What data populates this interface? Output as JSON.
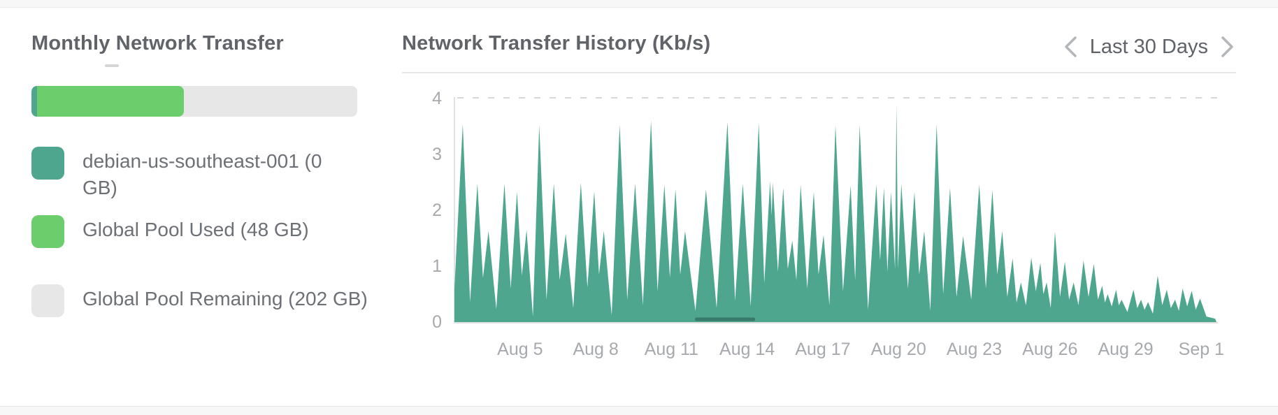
{
  "monthly_transfer": {
    "title": "Monthly Network Transfer",
    "bar": {
      "track_color": "#e7e7e7",
      "segments": [
        {
          "name": "debian-us-southeast-001",
          "color": "#4EA68F",
          "percent": 1.7
        },
        {
          "name": "Global Pool Used",
          "color": "#6BCD6B",
          "percent": 45.1
        }
      ]
    },
    "legend": [
      {
        "label": "debian-us-southeast-001 (0 GB)",
        "color": "#4EA68F"
      },
      {
        "label": "Global Pool Used (48 GB)",
        "color": "#6BCD6B"
      },
      {
        "label": "Global Pool Remaining (202 GB)",
        "color": "#e7e7e7"
      }
    ]
  },
  "history": {
    "title": "Network Transfer History (Kb/s)",
    "range_label": "Last 30 Days"
  },
  "chart_data": {
    "type": "area",
    "title": "Network Transfer History (Kb/s)",
    "xlabel": "",
    "ylabel": "Kb/s",
    "xlim": [
      2.4,
      32.6
    ],
    "ylim": [
      0,
      4
    ],
    "grid": "dashed reference line at y=4 only; light left and bottom axis lines",
    "legend_position": "none",
    "xticks": [
      {
        "v": 5,
        "label": "Aug 5"
      },
      {
        "v": 8,
        "label": "Aug 8"
      },
      {
        "v": 11,
        "label": "Aug 11"
      },
      {
        "v": 14,
        "label": "Aug 14"
      },
      {
        "v": 17,
        "label": "Aug 17"
      },
      {
        "v": 20,
        "label": "Aug 20"
      },
      {
        "v": 23,
        "label": "Aug 23"
      },
      {
        "v": 26,
        "label": "Aug 26"
      },
      {
        "v": 29,
        "label": "Aug 29"
      },
      {
        "v": 32,
        "label": "Sep 1"
      }
    ],
    "yticks": [
      {
        "v": 0,
        "label": "0"
      },
      {
        "v": 1,
        "label": "1"
      },
      {
        "v": 2,
        "label": "2"
      },
      {
        "v": 3,
        "label": "3"
      },
      {
        "v": 4,
        "label": "4"
      }
    ],
    "series": [
      {
        "id": "global-pool-traffic",
        "style": "filled-area",
        "color": "#4EA68F",
        "points": [
          [
            2.4,
            0.6
          ],
          [
            2.73,
            3.54
          ],
          [
            3.02,
            0.36
          ],
          [
            3.31,
            2.48
          ],
          [
            3.53,
            0.79
          ],
          [
            3.75,
            1.63
          ],
          [
            4.06,
            0.23
          ],
          [
            4.38,
            2.48
          ],
          [
            4.63,
            0.6
          ],
          [
            4.88,
            2.33
          ],
          [
            5.07,
            0.83
          ],
          [
            5.26,
            1.65
          ],
          [
            5.51,
            0.1
          ],
          [
            5.76,
            3.52
          ],
          [
            6.05,
            0.4
          ],
          [
            6.34,
            2.48
          ],
          [
            6.57,
            0.75
          ],
          [
            6.81,
            1.58
          ],
          [
            7.11,
            0.25
          ],
          [
            7.41,
            2.49
          ],
          [
            7.67,
            0.62
          ],
          [
            7.94,
            2.34
          ],
          [
            8.13,
            0.85
          ],
          [
            8.32,
            1.63
          ],
          [
            8.63,
            0.12
          ],
          [
            8.95,
            3.53
          ],
          [
            9.25,
            0.4
          ],
          [
            9.56,
            2.48
          ],
          [
            9.87,
            0.3
          ],
          [
            10.19,
            3.61
          ],
          [
            10.45,
            0.55
          ],
          [
            10.72,
            2.46
          ],
          [
            10.94,
            0.8
          ],
          [
            11.16,
            2.38
          ],
          [
            11.35,
            0.85
          ],
          [
            11.54,
            1.63
          ],
          [
            11.95,
            0.2
          ],
          [
            12.37,
            2.37
          ],
          [
            12.79,
            0.25
          ],
          [
            13.22,
            3.58
          ],
          [
            13.52,
            0.38
          ],
          [
            13.83,
            2.48
          ],
          [
            14.14,
            0.28
          ],
          [
            14.46,
            3.56
          ],
          [
            14.68,
            0.7
          ],
          [
            14.91,
            2.52
          ],
          [
            14.97,
            1.9
          ],
          [
            15.02,
            2.5
          ],
          [
            15.22,
            0.9
          ],
          [
            15.43,
            2.4
          ],
          [
            15.61,
            0.95
          ],
          [
            15.79,
            1.46
          ],
          [
            15.95,
            0.75
          ],
          [
            16.12,
            2.46
          ],
          [
            16.38,
            0.6
          ],
          [
            16.64,
            2.33
          ],
          [
            16.83,
            0.85
          ],
          [
            17.03,
            1.56
          ],
          [
            17.26,
            0.3
          ],
          [
            17.5,
            3.52
          ],
          [
            17.8,
            0.55
          ],
          [
            18.1,
            2.44
          ],
          [
            18.28,
            0.75
          ],
          [
            18.46,
            3.52
          ],
          [
            18.79,
            0.22
          ],
          [
            19.12,
            2.46
          ],
          [
            19.27,
            1.1
          ],
          [
            19.42,
            2.4
          ],
          [
            19.56,
            0.9
          ],
          [
            19.7,
            2.33
          ],
          [
            19.86,
            0.95
          ],
          [
            19.92,
            3.9
          ],
          [
            19.98,
            0.95
          ],
          [
            20.11,
            2.48
          ],
          [
            20.37,
            0.6
          ],
          [
            20.63,
            2.33
          ],
          [
            20.82,
            0.85
          ],
          [
            21.02,
            1.63
          ],
          [
            21.26,
            0.2
          ],
          [
            21.51,
            3.54
          ],
          [
            21.77,
            0.5
          ],
          [
            22.04,
            2.4
          ],
          [
            22.3,
            0.45
          ],
          [
            22.56,
            1.54
          ],
          [
            22.88,
            0.4
          ],
          [
            23.2,
            2.46
          ],
          [
            23.46,
            0.6
          ],
          [
            23.72,
            2.36
          ],
          [
            23.91,
            0.85
          ],
          [
            24.11,
            1.63
          ],
          [
            24.31,
            0.45
          ],
          [
            24.52,
            1.14
          ],
          [
            24.68,
            0.35
          ],
          [
            24.85,
            0.71
          ],
          [
            25.05,
            0.3
          ],
          [
            25.26,
            1.15
          ],
          [
            25.44,
            0.55
          ],
          [
            25.62,
            1.06
          ],
          [
            25.74,
            0.5
          ],
          [
            25.87,
            0.71
          ],
          [
            26.03,
            0.25
          ],
          [
            26.2,
            1.62
          ],
          [
            26.4,
            0.45
          ],
          [
            26.59,
            1.08
          ],
          [
            26.76,
            0.4
          ],
          [
            26.94,
            0.71
          ],
          [
            27.13,
            0.3
          ],
          [
            27.33,
            1.1
          ],
          [
            27.53,
            0.45
          ],
          [
            27.74,
            1.04
          ],
          [
            27.9,
            0.4
          ],
          [
            28.07,
            0.65
          ],
          [
            28.18,
            0.35
          ],
          [
            28.29,
            0.5
          ],
          [
            28.45,
            0.28
          ],
          [
            28.62,
            0.58
          ],
          [
            28.73,
            0.3
          ],
          [
            28.84,
            0.4
          ],
          [
            29.07,
            0.18
          ],
          [
            29.31,
            0.58
          ],
          [
            29.46,
            0.25
          ],
          [
            29.61,
            0.4
          ],
          [
            29.75,
            0.22
          ],
          [
            29.89,
            0.36
          ],
          [
            30.08,
            0.15
          ],
          [
            30.27,
            0.83
          ],
          [
            30.45,
            0.3
          ],
          [
            30.63,
            0.58
          ],
          [
            30.79,
            0.25
          ],
          [
            30.96,
            0.4
          ],
          [
            31.11,
            0.2
          ],
          [
            31.26,
            0.6
          ],
          [
            31.44,
            0.28
          ],
          [
            31.62,
            0.56
          ],
          [
            31.78,
            0.22
          ],
          [
            31.95,
            0.42
          ],
          [
            32.2,
            0.1
          ],
          [
            32.55,
            0.06
          ]
        ]
      },
      {
        "id": "debian-us-southeast-001-low-segment",
        "style": "line",
        "color": "#37796A",
        "points": [
          [
            12.0,
            0.05
          ],
          [
            14.25,
            0.05
          ]
        ]
      }
    ]
  }
}
